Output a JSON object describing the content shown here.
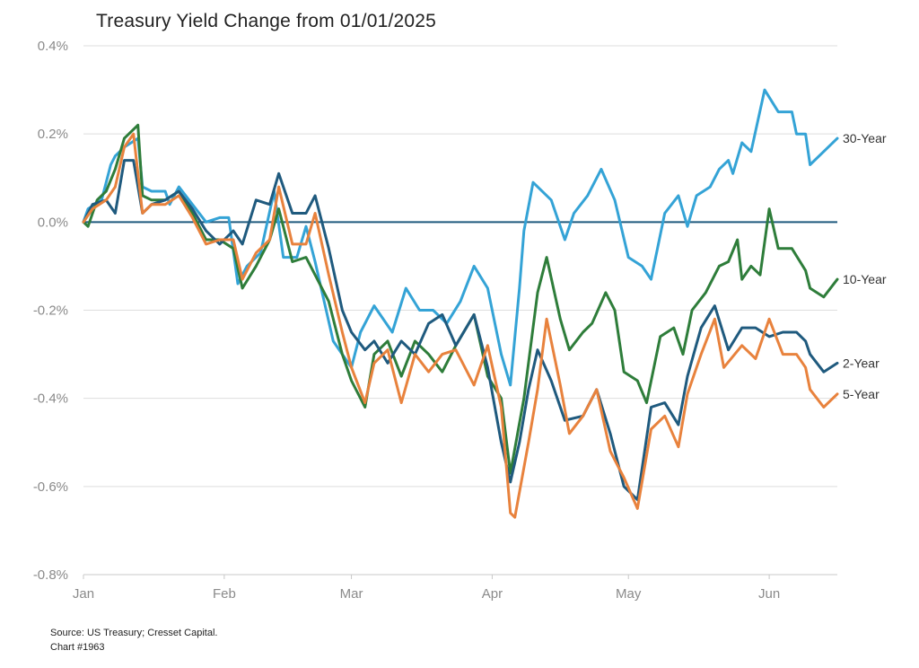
{
  "title": "Treasury Yield Change from 01/01/2025",
  "footer": {
    "source": "Source: US Treasury; Cresset Capital.",
    "chart_id": "Chart #1963"
  },
  "chart_data": {
    "type": "line",
    "title": "Treasury Yield Change from 01/01/2025",
    "xlabel": "",
    "ylabel": "",
    "x_axis": {
      "type": "date",
      "ticks": [
        {
          "label": "Jan",
          "date": "2025-01-01"
        },
        {
          "label": "Feb",
          "date": "2025-02-01"
        },
        {
          "label": "Mar",
          "date": "2025-03-01"
        },
        {
          "label": "Apr",
          "date": "2025-04-01"
        },
        {
          "label": "May",
          "date": "2025-05-01"
        },
        {
          "label": "Jun",
          "date": "2025-06-01"
        }
      ]
    },
    "y_axis": {
      "unit": "%",
      "ylim": [
        -0.8,
        0.4
      ],
      "ticks": [
        0.4,
        0.2,
        0.0,
        -0.2,
        -0.4,
        -0.6,
        -0.8
      ],
      "tick_labels": [
        "0.4%",
        "0.2%",
        "0.0%",
        "-0.2%",
        "-0.4%",
        "-0.6%",
        "-0.8%"
      ]
    },
    "grid": "horizontal",
    "reference_line": {
      "y": 0.0,
      "color": "#1f5a7e"
    },
    "legend": "end-of-line labels",
    "series": [
      {
        "name": "30-Year",
        "color": "#34a3d6",
        "points": [
          [
            "2025-01-01",
            0.0
          ],
          [
            "2025-01-02",
            0.03
          ],
          [
            "2025-01-05",
            0.05
          ],
          [
            "2025-01-07",
            0.13
          ],
          [
            "2025-01-08",
            0.15
          ],
          [
            "2025-01-10",
            0.17
          ],
          [
            "2025-01-13",
            0.19
          ],
          [
            "2025-01-14",
            0.08
          ],
          [
            "2025-01-16",
            0.07
          ],
          [
            "2025-01-19",
            0.07
          ],
          [
            "2025-01-20",
            0.04
          ],
          [
            "2025-01-22",
            0.08
          ],
          [
            "2025-01-25",
            0.04
          ],
          [
            "2025-01-28",
            0.0
          ],
          [
            "2025-01-31",
            0.01
          ],
          [
            "2025-02-02",
            0.01
          ],
          [
            "2025-02-04",
            -0.14
          ],
          [
            "2025-02-06",
            -0.1
          ],
          [
            "2025-02-09",
            -0.07
          ],
          [
            "2025-02-12",
            0.07
          ],
          [
            "2025-02-14",
            -0.08
          ],
          [
            "2025-02-17",
            -0.08
          ],
          [
            "2025-02-19",
            -0.01
          ],
          [
            "2025-02-21",
            -0.09
          ],
          [
            "2025-02-23",
            -0.18
          ],
          [
            "2025-02-25",
            -0.27
          ],
          [
            "2025-02-27",
            -0.3
          ],
          [
            "2025-03-01",
            -0.33
          ],
          [
            "2025-03-03",
            -0.25
          ],
          [
            "2025-03-06",
            -0.19
          ],
          [
            "2025-03-10",
            -0.25
          ],
          [
            "2025-03-13",
            -0.15
          ],
          [
            "2025-03-16",
            -0.2
          ],
          [
            "2025-03-19",
            -0.2
          ],
          [
            "2025-03-22",
            -0.23
          ],
          [
            "2025-03-25",
            -0.18
          ],
          [
            "2025-03-28",
            -0.1
          ],
          [
            "2025-03-31",
            -0.15
          ],
          [
            "2025-04-03",
            -0.3
          ],
          [
            "2025-04-05",
            -0.37
          ],
          [
            "2025-04-07",
            -0.15
          ],
          [
            "2025-04-08",
            -0.02
          ],
          [
            "2025-04-10",
            0.09
          ],
          [
            "2025-04-14",
            0.05
          ],
          [
            "2025-04-17",
            -0.04
          ],
          [
            "2025-04-19",
            0.02
          ],
          [
            "2025-04-22",
            0.06
          ],
          [
            "2025-04-25",
            0.12
          ],
          [
            "2025-04-28",
            0.05
          ],
          [
            "2025-05-01",
            -0.08
          ],
          [
            "2025-05-04",
            -0.1
          ],
          [
            "2025-05-06",
            -0.13
          ],
          [
            "2025-05-09",
            0.02
          ],
          [
            "2025-05-12",
            0.06
          ],
          [
            "2025-05-14",
            -0.01
          ],
          [
            "2025-05-16",
            0.06
          ],
          [
            "2025-05-19",
            0.08
          ],
          [
            "2025-05-21",
            0.12
          ],
          [
            "2025-05-23",
            0.14
          ],
          [
            "2025-05-24",
            0.11
          ],
          [
            "2025-05-26",
            0.18
          ],
          [
            "2025-05-28",
            0.16
          ],
          [
            "2025-05-31",
            0.3
          ],
          [
            "2025-06-03",
            0.25
          ],
          [
            "2025-06-06",
            0.25
          ],
          [
            "2025-06-07",
            0.2
          ],
          [
            "2025-06-09",
            0.2
          ],
          [
            "2025-06-10",
            0.13
          ],
          [
            "2025-06-13",
            0.16
          ],
          [
            "2025-06-16",
            0.19
          ]
        ]
      },
      {
        "name": "10-Year",
        "color": "#2e7d3a",
        "points": [
          [
            "2025-01-01",
            0.0
          ],
          [
            "2025-01-02",
            -0.01
          ],
          [
            "2025-01-04",
            0.05
          ],
          [
            "2025-01-06",
            0.07
          ],
          [
            "2025-01-08",
            0.12
          ],
          [
            "2025-01-10",
            0.19
          ],
          [
            "2025-01-13",
            0.22
          ],
          [
            "2025-01-14",
            0.06
          ],
          [
            "2025-01-16",
            0.05
          ],
          [
            "2025-01-19",
            0.05
          ],
          [
            "2025-01-22",
            0.07
          ],
          [
            "2025-01-25",
            0.02
          ],
          [
            "2025-01-28",
            -0.04
          ],
          [
            "2025-01-31",
            -0.04
          ],
          [
            "2025-02-03",
            -0.06
          ],
          [
            "2025-02-05",
            -0.15
          ],
          [
            "2025-02-08",
            -0.1
          ],
          [
            "2025-02-11",
            -0.04
          ],
          [
            "2025-02-13",
            0.03
          ],
          [
            "2025-02-16",
            -0.09
          ],
          [
            "2025-02-19",
            -0.08
          ],
          [
            "2025-02-21",
            -0.12
          ],
          [
            "2025-02-24",
            -0.18
          ],
          [
            "2025-02-27",
            -0.3
          ],
          [
            "2025-03-01",
            -0.36
          ],
          [
            "2025-03-04",
            -0.42
          ],
          [
            "2025-03-06",
            -0.3
          ],
          [
            "2025-03-09",
            -0.27
          ],
          [
            "2025-03-12",
            -0.35
          ],
          [
            "2025-03-15",
            -0.27
          ],
          [
            "2025-03-18",
            -0.3
          ],
          [
            "2025-03-21",
            -0.34
          ],
          [
            "2025-03-24",
            -0.28
          ],
          [
            "2025-03-28",
            -0.21
          ],
          [
            "2025-03-31",
            -0.35
          ],
          [
            "2025-04-03",
            -0.4
          ],
          [
            "2025-04-05",
            -0.57
          ],
          [
            "2025-04-08",
            -0.4
          ],
          [
            "2025-04-11",
            -0.16
          ],
          [
            "2025-04-13",
            -0.08
          ],
          [
            "2025-04-16",
            -0.22
          ],
          [
            "2025-04-18",
            -0.29
          ],
          [
            "2025-04-21",
            -0.25
          ],
          [
            "2025-04-23",
            -0.23
          ],
          [
            "2025-04-26",
            -0.16
          ],
          [
            "2025-04-28",
            -0.2
          ],
          [
            "2025-04-30",
            -0.34
          ],
          [
            "2025-05-03",
            -0.36
          ],
          [
            "2025-05-05",
            -0.41
          ],
          [
            "2025-05-08",
            -0.26
          ],
          [
            "2025-05-11",
            -0.24
          ],
          [
            "2025-05-13",
            -0.3
          ],
          [
            "2025-05-15",
            -0.2
          ],
          [
            "2025-05-18",
            -0.16
          ],
          [
            "2025-05-21",
            -0.1
          ],
          [
            "2025-05-23",
            -0.09
          ],
          [
            "2025-05-25",
            -0.04
          ],
          [
            "2025-05-26",
            -0.13
          ],
          [
            "2025-05-28",
            -0.1
          ],
          [
            "2025-05-30",
            -0.12
          ],
          [
            "2025-06-01",
            0.03
          ],
          [
            "2025-06-03",
            -0.06
          ],
          [
            "2025-06-06",
            -0.06
          ],
          [
            "2025-06-09",
            -0.11
          ],
          [
            "2025-06-10",
            -0.15
          ],
          [
            "2025-06-13",
            -0.17
          ],
          [
            "2025-06-16",
            -0.13
          ]
        ]
      },
      {
        "name": "2-Year",
        "color": "#1f5a7e",
        "points": [
          [
            "2025-01-01",
            0.0
          ],
          [
            "2025-01-03",
            0.04
          ],
          [
            "2025-01-06",
            0.05
          ],
          [
            "2025-01-08",
            0.02
          ],
          [
            "2025-01-10",
            0.14
          ],
          [
            "2025-01-12",
            0.14
          ],
          [
            "2025-01-14",
            0.02
          ],
          [
            "2025-01-16",
            0.04
          ],
          [
            "2025-01-19",
            0.05
          ],
          [
            "2025-01-22",
            0.07
          ],
          [
            "2025-01-25",
            0.03
          ],
          [
            "2025-01-28",
            -0.02
          ],
          [
            "2025-01-31",
            -0.05
          ],
          [
            "2025-02-03",
            -0.02
          ],
          [
            "2025-02-05",
            -0.05
          ],
          [
            "2025-02-08",
            0.05
          ],
          [
            "2025-02-11",
            0.04
          ],
          [
            "2025-02-13",
            0.11
          ],
          [
            "2025-02-16",
            0.02
          ],
          [
            "2025-02-19",
            0.02
          ],
          [
            "2025-02-21",
            0.06
          ],
          [
            "2025-02-24",
            -0.06
          ],
          [
            "2025-02-27",
            -0.2
          ],
          [
            "2025-03-01",
            -0.25
          ],
          [
            "2025-03-04",
            -0.29
          ],
          [
            "2025-03-06",
            -0.27
          ],
          [
            "2025-03-09",
            -0.32
          ],
          [
            "2025-03-12",
            -0.27
          ],
          [
            "2025-03-15",
            -0.3
          ],
          [
            "2025-03-18",
            -0.23
          ],
          [
            "2025-03-21",
            -0.21
          ],
          [
            "2025-03-24",
            -0.28
          ],
          [
            "2025-03-28",
            -0.21
          ],
          [
            "2025-03-31",
            -0.33
          ],
          [
            "2025-04-03",
            -0.5
          ],
          [
            "2025-04-05",
            -0.59
          ],
          [
            "2025-04-07",
            -0.5
          ],
          [
            "2025-04-09",
            -0.38
          ],
          [
            "2025-04-11",
            -0.29
          ],
          [
            "2025-04-14",
            -0.36
          ],
          [
            "2025-04-17",
            -0.45
          ],
          [
            "2025-04-21",
            -0.44
          ],
          [
            "2025-04-24",
            -0.38
          ],
          [
            "2025-04-27",
            -0.48
          ],
          [
            "2025-04-30",
            -0.6
          ],
          [
            "2025-05-03",
            -0.63
          ],
          [
            "2025-05-06",
            -0.42
          ],
          [
            "2025-05-09",
            -0.41
          ],
          [
            "2025-05-12",
            -0.46
          ],
          [
            "2025-05-14",
            -0.35
          ],
          [
            "2025-05-17",
            -0.24
          ],
          [
            "2025-05-20",
            -0.19
          ],
          [
            "2025-05-23",
            -0.29
          ],
          [
            "2025-05-26",
            -0.24
          ],
          [
            "2025-05-29",
            -0.24
          ],
          [
            "2025-06-01",
            -0.26
          ],
          [
            "2025-06-04",
            -0.25
          ],
          [
            "2025-06-07",
            -0.25
          ],
          [
            "2025-06-09",
            -0.27
          ],
          [
            "2025-06-10",
            -0.3
          ],
          [
            "2025-06-13",
            -0.34
          ],
          [
            "2025-06-16",
            -0.32
          ]
        ]
      },
      {
        "name": "5-Year",
        "color": "#e8823d",
        "points": [
          [
            "2025-01-01",
            0.0
          ],
          [
            "2025-01-03",
            0.03
          ],
          [
            "2025-01-06",
            0.05
          ],
          [
            "2025-01-08",
            0.08
          ],
          [
            "2025-01-10",
            0.17
          ],
          [
            "2025-01-12",
            0.2
          ],
          [
            "2025-01-14",
            0.02
          ],
          [
            "2025-01-16",
            0.04
          ],
          [
            "2025-01-19",
            0.04
          ],
          [
            "2025-01-22",
            0.06
          ],
          [
            "2025-01-25",
            0.01
          ],
          [
            "2025-01-28",
            -0.05
          ],
          [
            "2025-01-31",
            -0.04
          ],
          [
            "2025-02-03",
            -0.04
          ],
          [
            "2025-02-05",
            -0.13
          ],
          [
            "2025-02-08",
            -0.07
          ],
          [
            "2025-02-11",
            -0.04
          ],
          [
            "2025-02-13",
            0.08
          ],
          [
            "2025-02-16",
            -0.05
          ],
          [
            "2025-02-19",
            -0.05
          ],
          [
            "2025-02-21",
            0.02
          ],
          [
            "2025-02-24",
            -0.12
          ],
          [
            "2025-02-27",
            -0.25
          ],
          [
            "2025-03-01",
            -0.33
          ],
          [
            "2025-03-04",
            -0.41
          ],
          [
            "2025-03-06",
            -0.32
          ],
          [
            "2025-03-09",
            -0.29
          ],
          [
            "2025-03-12",
            -0.41
          ],
          [
            "2025-03-15",
            -0.3
          ],
          [
            "2025-03-18",
            -0.34
          ],
          [
            "2025-03-21",
            -0.3
          ],
          [
            "2025-03-24",
            -0.29
          ],
          [
            "2025-03-28",
            -0.37
          ],
          [
            "2025-03-31",
            -0.28
          ],
          [
            "2025-04-03",
            -0.42
          ],
          [
            "2025-04-05",
            -0.66
          ],
          [
            "2025-04-06",
            -0.67
          ],
          [
            "2025-04-09",
            -0.5
          ],
          [
            "2025-04-11",
            -0.38
          ],
          [
            "2025-04-13",
            -0.22
          ],
          [
            "2025-04-16",
            -0.37
          ],
          [
            "2025-04-18",
            -0.48
          ],
          [
            "2025-04-21",
            -0.44
          ],
          [
            "2025-04-24",
            -0.38
          ],
          [
            "2025-04-27",
            -0.52
          ],
          [
            "2025-04-30",
            -0.58
          ],
          [
            "2025-05-03",
            -0.65
          ],
          [
            "2025-05-06",
            -0.47
          ],
          [
            "2025-05-09",
            -0.44
          ],
          [
            "2025-05-12",
            -0.51
          ],
          [
            "2025-05-14",
            -0.39
          ],
          [
            "2025-05-17",
            -0.3
          ],
          [
            "2025-05-20",
            -0.22
          ],
          [
            "2025-05-22",
            -0.33
          ],
          [
            "2025-05-26",
            -0.28
          ],
          [
            "2025-05-29",
            -0.31
          ],
          [
            "2025-06-01",
            -0.22
          ],
          [
            "2025-06-04",
            -0.3
          ],
          [
            "2025-06-07",
            -0.3
          ],
          [
            "2025-06-09",
            -0.33
          ],
          [
            "2025-06-10",
            -0.38
          ],
          [
            "2025-06-13",
            -0.42
          ],
          [
            "2025-06-16",
            -0.39
          ]
        ]
      }
    ]
  }
}
